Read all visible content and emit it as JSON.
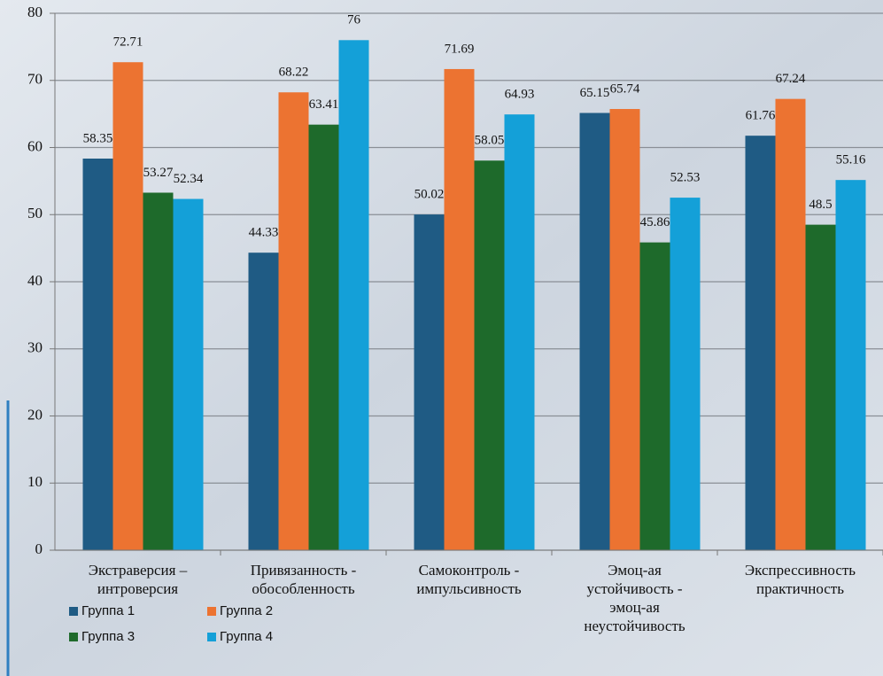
{
  "chart_data": {
    "type": "bar",
    "categories": [
      [
        "Экстраверсия –",
        "интроверсия"
      ],
      [
        "Привязанность -",
        "обособленность"
      ],
      [
        "Самоконтроль -",
        "импульсивность"
      ],
      [
        "Эмоц-ая",
        "устойчивость -",
        "эмоц-ая",
        "неустойчивость"
      ],
      [
        "Экспрессивность",
        "практичность"
      ]
    ],
    "series": [
      {
        "name": "Группа 1",
        "color": "#1f5b84",
        "values": [
          58.35,
          44.33,
          50.02,
          65.15,
          61.76
        ]
      },
      {
        "name": "Группа 2",
        "color": "#ec7331",
        "values": [
          72.71,
          68.22,
          71.69,
          65.74,
          67.24
        ]
      },
      {
        "name": "Группа 3",
        "color": "#1e6a2b",
        "values": [
          53.27,
          63.41,
          58.05,
          45.86,
          48.5
        ]
      },
      {
        "name": "Группа 4",
        "color": "#14a0d8",
        "values": [
          52.34,
          76,
          64.93,
          52.53,
          55.16
        ]
      }
    ],
    "ylim": [
      0,
      80
    ],
    "yticks": [
      0,
      10,
      20,
      30,
      40,
      50,
      60,
      70,
      80
    ],
    "grid": true,
    "legend": "bottom-left"
  }
}
